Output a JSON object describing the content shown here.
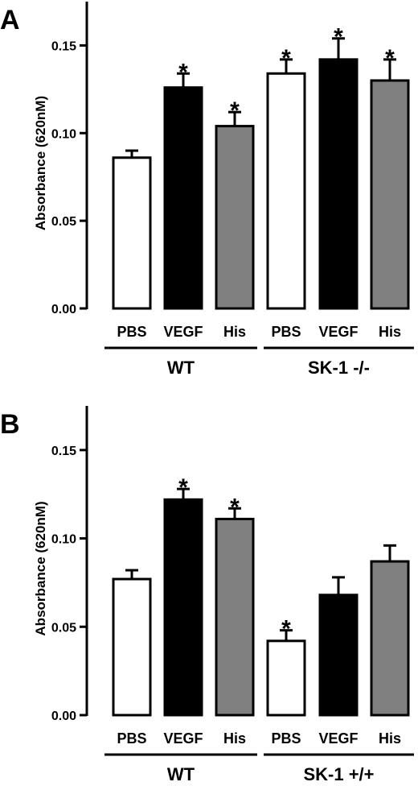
{
  "chart_data": [
    {
      "type": "bar",
      "panel_label": "A",
      "ylabel": "Absorbance (620nM)",
      "ylim": [
        0,
        0.175
      ],
      "yticks": [
        "0.00",
        "0.05",
        "0.10",
        "0.15"
      ],
      "categories": [
        "PBS",
        "VEGF",
        "His",
        "PBS",
        "VEGF",
        "His"
      ],
      "groups": [
        {
          "label": "WT",
          "indices": [
            0,
            1,
            2
          ]
        },
        {
          "label": "SK-1 -/-",
          "indices": [
            3,
            4,
            5
          ]
        }
      ],
      "values": [
        0.086,
        0.126,
        0.104,
        0.134,
        0.142,
        0.13
      ],
      "errors": [
        0.004,
        0.008,
        0.008,
        0.008,
        0.012,
        0.012
      ],
      "significant": [
        false,
        true,
        true,
        true,
        true,
        true
      ],
      "star": "*",
      "colors": [
        "#ffffff",
        "#000000",
        "#808080",
        "#ffffff",
        "#000000",
        "#808080"
      ]
    },
    {
      "type": "bar",
      "panel_label": "B",
      "ylabel": "Absorbance (620nM)",
      "ylim": [
        0,
        0.175
      ],
      "yticks": [
        "0.00",
        "0.05",
        "0.10",
        "0.15"
      ],
      "categories": [
        "PBS",
        "VEGF",
        "His",
        "PBS",
        "VEGF",
        "His"
      ],
      "groups": [
        {
          "label": "WT",
          "indices": [
            0,
            1,
            2
          ]
        },
        {
          "label": "SK-1 +/+",
          "indices": [
            3,
            4,
            5
          ]
        }
      ],
      "values": [
        0.077,
        0.122,
        0.111,
        0.042,
        0.068,
        0.087
      ],
      "errors": [
        0.005,
        0.006,
        0.006,
        0.006,
        0.01,
        0.009
      ],
      "significant": [
        false,
        true,
        true,
        true,
        false,
        false
      ],
      "star": "*",
      "colors": [
        "#ffffff",
        "#000000",
        "#808080",
        "#ffffff",
        "#000000",
        "#808080"
      ]
    }
  ]
}
